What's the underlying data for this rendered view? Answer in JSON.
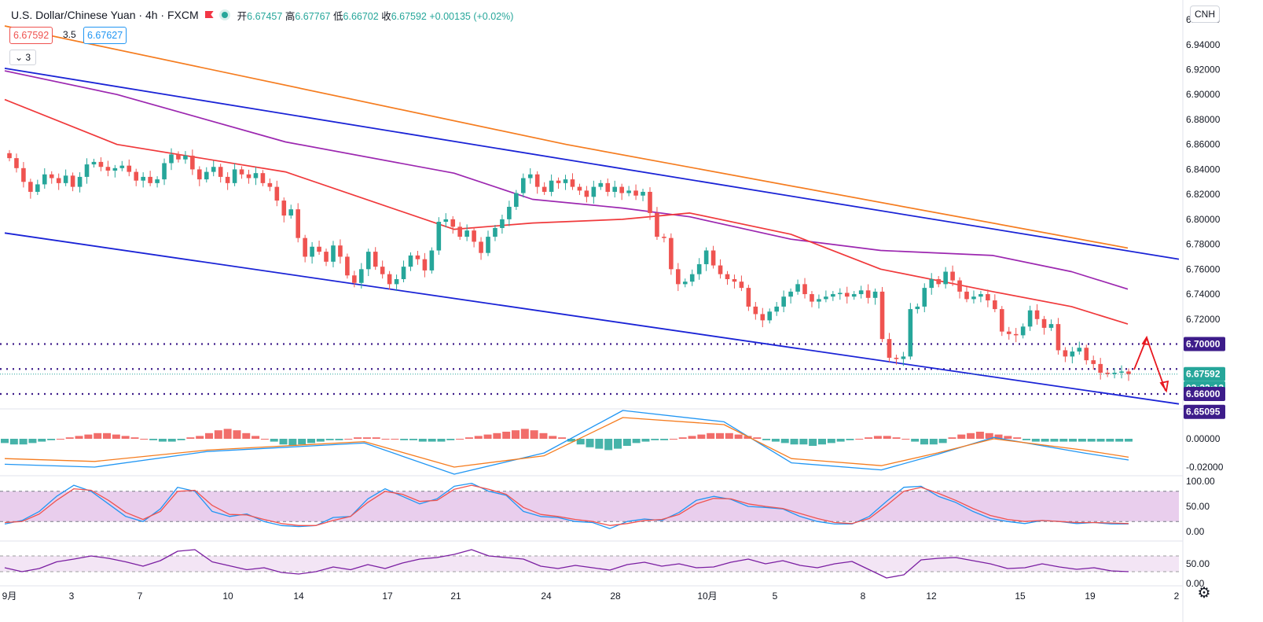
{
  "header": {
    "symbol_title": "U.S. Dollar/Chinese Yuan · 4h · FXCM",
    "ohlc": [
      {
        "label": "开",
        "value": "6.67457"
      },
      {
        "label": "高",
        "value": "6.67767"
      },
      {
        "label": "低",
        "value": "6.66702"
      },
      {
        "label": "收",
        "value": "6.67592"
      }
    ],
    "change": "+0.00135 (+0.02%)",
    "sell_price": "6.67592",
    "spread": "3.5",
    "buy_price": "6.67627",
    "indicators_collapsed_count": "3",
    "currency_badge": "CNH",
    "settings_icon": "gear-icon",
    "flag_icon": "flag-icon",
    "status_icon": "market-status-icon"
  },
  "colors": {
    "up": "#26a69a",
    "down": "#ef5350",
    "channel": "#1a23d6",
    "ma_orange": "#f57c1f",
    "ma_purple": "#9c27b0",
    "ma_red": "#f0393b",
    "support_lines": "#3d1c8a",
    "price_tag": "#26a69a",
    "arrow": "#e8161e",
    "macd_line": "#2196f3",
    "signal_line": "#f57c1f",
    "stoch_band": "#e1bee7",
    "rsi_line": "#7b1fa2"
  },
  "chart_data": [
    {
      "type": "candlestick",
      "title": "U.S. Dollar/Chinese Yuan 4h FXCM",
      "x_ticks": [
        "9月",
        "3",
        "7",
        "10",
        "14",
        "17",
        "21",
        "24",
        "28",
        "10月",
        "5",
        "8",
        "12",
        "15",
        "19",
        "2"
      ],
      "y_ticks": [
        "6.96000",
        "6.94000",
        "6.92000",
        "6.90000",
        "6.88000",
        "6.86000",
        "6.84000",
        "6.82000",
        "6.80000",
        "6.78000",
        "6.76000",
        "6.74000",
        "6.72000",
        "6.70000",
        "6.66000",
        "6.65095"
      ],
      "ylim": [
        6.648,
        6.972
      ],
      "price_labels": {
        "level_upper": "6.70000",
        "last_price": "6.67592",
        "countdown": "03:22:12",
        "level_lower": "6.66000",
        "low_mark": "6.65095"
      },
      "horizontal_levels": [
        6.7,
        6.68,
        6.66
      ],
      "closes": [
        6.849,
        6.841,
        6.83,
        6.822,
        6.828,
        6.836,
        6.833,
        6.829,
        6.835,
        6.826,
        6.834,
        6.844,
        6.846,
        6.842,
        6.839,
        6.841,
        6.843,
        6.838,
        6.831,
        6.834,
        6.829,
        6.832,
        6.845,
        6.852,
        6.848,
        6.851,
        6.84,
        6.832,
        6.838,
        6.842,
        6.834,
        6.829,
        6.84,
        6.836,
        6.833,
        6.837,
        6.829,
        6.826,
        6.815,
        6.803,
        6.808,
        6.785,
        6.77,
        6.778,
        6.774,
        6.766,
        6.779,
        6.77,
        6.755,
        6.749,
        6.76,
        6.774,
        6.762,
        6.756,
        6.748,
        6.752,
        6.762,
        6.771,
        6.768,
        6.759,
        6.775,
        6.798,
        6.8,
        6.794,
        6.786,
        6.791,
        6.782,
        6.773,
        6.786,
        6.793,
        6.8,
        6.81,
        6.821,
        6.833,
        6.836,
        6.826,
        6.822,
        6.831,
        6.829,
        6.832,
        6.826,
        6.823,
        6.818,
        6.826,
        6.829,
        6.822,
        6.826,
        6.821,
        6.823,
        6.819,
        6.822,
        6.805,
        6.786,
        6.785,
        6.76,
        6.748,
        6.75,
        6.756,
        6.764,
        6.775,
        6.763,
        6.756,
        6.752,
        6.75,
        6.745,
        6.73,
        6.724,
        6.719,
        6.726,
        6.73,
        6.738,
        6.742,
        6.748,
        6.74,
        6.734,
        6.736,
        6.738,
        6.74,
        6.741,
        6.738,
        6.74,
        6.743,
        6.737,
        6.742,
        6.704,
        6.689,
        6.688,
        6.69,
        6.728,
        6.73,
        6.745,
        6.752,
        6.748,
        6.758,
        6.751,
        6.742,
        6.736,
        6.738,
        6.74,
        6.735,
        6.728,
        6.71,
        6.708,
        6.707,
        6.714,
        6.727,
        6.72,
        6.713,
        6.716,
        6.695,
        6.69,
        6.694,
        6.697,
        6.687,
        6.684,
        6.677,
        6.676,
        6.677,
        6.678,
        6.67592
      ],
      "series": [
        {
          "name": "MA orange",
          "x": [
            0,
            0.5,
            1
          ],
          "values": [
            6.955,
            6.86,
            6.777
          ]
        },
        {
          "name": "MA purple",
          "x": [
            0,
            0.1,
            0.25,
            0.4,
            0.47,
            0.55,
            0.61,
            0.7,
            0.78,
            0.88,
            0.95,
            1
          ],
          "values": [
            6.919,
            6.9,
            6.862,
            6.837,
            6.816,
            6.809,
            6.802,
            6.784,
            6.775,
            6.771,
            6.758,
            6.744
          ]
        },
        {
          "name": "MA red",
          "x": [
            0,
            0.1,
            0.25,
            0.4,
            0.47,
            0.55,
            0.61,
            0.7,
            0.78,
            0.88,
            0.95,
            1
          ],
          "values": [
            6.896,
            6.86,
            6.838,
            6.792,
            6.797,
            6.8,
            6.805,
            6.788,
            6.76,
            6.742,
            6.73,
            6.716
          ]
        },
        {
          "name": "Channel upper",
          "x": [
            0,
            1
          ],
          "values": [
            6.921,
            6.768
          ]
        },
        {
          "name": "Channel lower",
          "x": [
            0,
            1
          ],
          "values": [
            6.789,
            6.652
          ]
        }
      ]
    },
    {
      "type": "bar",
      "title": "MACD",
      "y_ticks": [
        "0.00000",
        "-0.02000"
      ],
      "ylim": [
        -0.025,
        0.02
      ],
      "hist": [
        -0.003,
        -0.004,
        -0.004,
        -0.003,
        -0.002,
        -0.001,
        0.0,
        0.001,
        0.002,
        0.003,
        0.004,
        0.004,
        0.003,
        0.002,
        0.001,
        0.0,
        -0.001,
        -0.002,
        -0.002,
        -0.001,
        0.001,
        0.002,
        0.004,
        0.006,
        0.007,
        0.006,
        0.004,
        0.002,
        0.0,
        -0.002,
        -0.004,
        -0.005,
        -0.004,
        -0.003,
        -0.002,
        -0.001,
        -0.001,
        0.0,
        0.001,
        0.001,
        0.001,
        0.0,
        0.0,
        -0.001,
        -0.001,
        -0.002,
        -0.002,
        -0.002,
        -0.001,
        0.0,
        0.001,
        0.002,
        0.003,
        0.004,
        0.005,
        0.006,
        0.007,
        0.006,
        0.004,
        0.002,
        0.001,
        -0.002,
        -0.004,
        -0.006,
        -0.007,
        -0.008,
        -0.007,
        -0.005,
        -0.003,
        -0.002,
        -0.001,
        -0.001,
        0.0,
        0.001,
        0.002,
        0.003,
        0.004,
        0.004,
        0.004,
        0.003,
        0.002,
        0.001,
        -0.001,
        -0.002,
        -0.003,
        -0.004,
        -0.004,
        -0.005,
        -0.004,
        -0.003,
        -0.002,
        -0.001,
        0.0,
        0.001,
        0.002,
        0.002,
        0.001,
        0.0,
        -0.002,
        -0.004,
        -0.004,
        -0.003,
        0.001,
        0.003,
        0.004,
        0.005,
        0.004,
        0.003,
        0.002,
        0.001,
        -0.001,
        -0.002,
        -0.002,
        -0.002,
        -0.002,
        -0.002,
        -0.002,
        -0.002,
        -0.002,
        -0.002,
        -0.002,
        -0.002
      ],
      "series": [
        {
          "name": "MACD",
          "x": [
            0,
            0.08,
            0.18,
            0.32,
            0.4,
            0.48,
            0.55,
            0.64,
            0.7,
            0.78,
            0.83,
            0.88,
            0.96,
            1
          ],
          "values": [
            -0.018,
            -0.02,
            -0.009,
            -0.003,
            -0.025,
            -0.01,
            0.02,
            0.012,
            -0.017,
            -0.022,
            -0.011,
            0.001,
            -0.01,
            -0.015
          ]
        },
        {
          "name": "Signal",
          "x": [
            0,
            0.08,
            0.18,
            0.32,
            0.4,
            0.48,
            0.55,
            0.64,
            0.7,
            0.78,
            0.83,
            0.88,
            0.96,
            1
          ],
          "values": [
            -0.014,
            -0.016,
            -0.008,
            -0.002,
            -0.02,
            -0.012,
            0.015,
            0.01,
            -0.014,
            -0.019,
            -0.01,
            0.0,
            -0.008,
            -0.013
          ]
        }
      ]
    },
    {
      "type": "line",
      "title": "Stochastic",
      "y_ticks": [
        "100.00",
        "50.00",
        "0.00"
      ],
      "ylim": [
        0,
        100
      ],
      "band": [
        20,
        80
      ],
      "series": [
        {
          "name": "%K",
          "values": [
            15,
            22,
            40,
            70,
            92,
            80,
            55,
            30,
            20,
            45,
            88,
            80,
            40,
            30,
            35,
            20,
            12,
            10,
            12,
            28,
            30,
            65,
            85,
            70,
            55,
            65,
            90,
            96,
            80,
            72,
            40,
            30,
            28,
            20,
            18,
            6,
            20,
            25,
            22,
            38,
            62,
            70,
            64,
            50,
            48,
            45,
            30,
            20,
            15,
            15,
            30,
            60,
            88,
            90,
            70,
            58,
            40,
            26,
            20,
            16,
            22,
            20,
            16,
            18,
            15,
            15
          ]
        },
        {
          "name": "%D",
          "values": [
            18,
            20,
            35,
            62,
            85,
            82,
            62,
            38,
            24,
            40,
            80,
            82,
            52,
            34,
            33,
            24,
            16,
            12,
            12,
            22,
            30,
            58,
            80,
            74,
            60,
            62,
            84,
            92,
            84,
            74,
            48,
            34,
            30,
            24,
            20,
            12,
            16,
            22,
            24,
            34,
            55,
            66,
            65,
            55,
            50,
            46,
            36,
            26,
            18,
            16,
            26,
            52,
            80,
            88,
            76,
            62,
            46,
            32,
            24,
            20,
            22,
            20,
            18,
            18,
            17,
            16
          ]
        }
      ]
    },
    {
      "type": "line",
      "title": "RSI",
      "y_ticks": [
        "50.00",
        "0.00"
      ],
      "ylim": [
        0,
        100
      ],
      "band": [
        30,
        70
      ],
      "series": [
        {
          "name": "RSI",
          "values": [
            40,
            30,
            38,
            55,
            62,
            70,
            64,
            55,
            44,
            58,
            82,
            86,
            55,
            45,
            35,
            40,
            28,
            24,
            30,
            42,
            35,
            48,
            38,
            52,
            62,
            66,
            74,
            86,
            70,
            66,
            62,
            44,
            38,
            46,
            40,
            34,
            48,
            54,
            44,
            50,
            40,
            42,
            54,
            62,
            50,
            58,
            46,
            40,
            50,
            56,
            35,
            14,
            22,
            60,
            64,
            66,
            58,
            50,
            38,
            40,
            50,
            42,
            36,
            40,
            32,
            30
          ]
        }
      ]
    }
  ]
}
